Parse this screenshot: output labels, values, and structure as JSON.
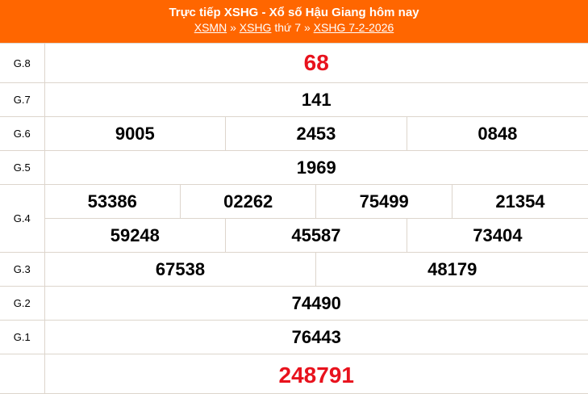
{
  "header": {
    "title": "Trực tiếp XSHG - Xổ số Hậu Giang hôm nay",
    "crumb1": "XSMN",
    "sep1": "»",
    "crumb2": "XSHG",
    "mid": "thứ 7",
    "sep2": "»",
    "crumb3": "XSHG 7-2-2026"
  },
  "prizes": {
    "g8": {
      "label": "G.8",
      "values": [
        "68"
      ]
    },
    "g7": {
      "label": "G.7",
      "values": [
        "141"
      ]
    },
    "g6": {
      "label": "G.6",
      "values": [
        "9005",
        "2453",
        "0848"
      ]
    },
    "g5": {
      "label": "G.5",
      "values": [
        "1969"
      ]
    },
    "g4": {
      "label": "G.4",
      "values": [
        "53386",
        "02262",
        "75499",
        "21354",
        "59248",
        "45587",
        "73404"
      ]
    },
    "g3": {
      "label": "G.3",
      "values": [
        "67538",
        "48179"
      ]
    },
    "g2": {
      "label": "G.2",
      "values": [
        "74490"
      ]
    },
    "g1": {
      "label": "G.1",
      "values": [
        "76443"
      ]
    },
    "db": {
      "label": "",
      "values": [
        "248791"
      ]
    }
  },
  "colors": {
    "header": "#ff6600",
    "highlight": "#e8121d"
  }
}
